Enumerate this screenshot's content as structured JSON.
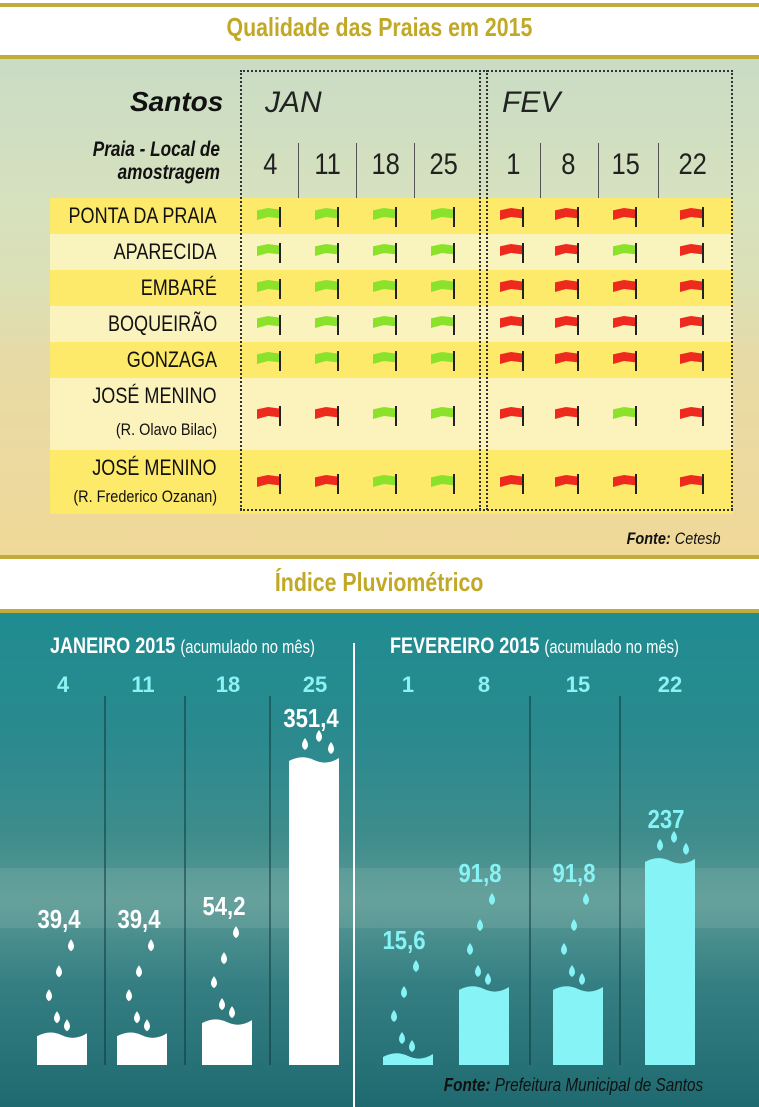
{
  "header": {
    "title": "Qualidade das Praias em  2015"
  },
  "table": {
    "city": "Santos",
    "column_header": "Praia - Local de amostragem",
    "months": [
      {
        "label": "JAN",
        "days": [
          "4",
          "11",
          "18",
          "25"
        ]
      },
      {
        "label": "FEV",
        "days": [
          "1",
          "8",
          "15",
          "22"
        ]
      }
    ],
    "rows": [
      {
        "name": "PONTA DA PRAIA",
        "sub": "",
        "flags": [
          "green",
          "green",
          "green",
          "green",
          "red",
          "red",
          "red",
          "red"
        ]
      },
      {
        "name": "APARECIDA",
        "sub": "",
        "flags": [
          "green",
          "green",
          "green",
          "green",
          "red",
          "red",
          "green",
          "red"
        ]
      },
      {
        "name": "EMBARÉ",
        "sub": "",
        "flags": [
          "green",
          "green",
          "green",
          "green",
          "red",
          "red",
          "red",
          "red"
        ]
      },
      {
        "name": "BOQUEIRÃO",
        "sub": "",
        "flags": [
          "green",
          "green",
          "green",
          "green",
          "red",
          "red",
          "red",
          "red"
        ]
      },
      {
        "name": "GONZAGA",
        "sub": "",
        "flags": [
          "green",
          "green",
          "green",
          "green",
          "red",
          "red",
          "red",
          "red"
        ]
      },
      {
        "name": "JOSÉ MENINO",
        "sub": "(R. Olavo Bilac)",
        "flags": [
          "red",
          "red",
          "green",
          "green",
          "red",
          "red",
          "green",
          "red"
        ]
      },
      {
        "name": "JOSÉ MENINO",
        "sub": "(R. Frederico Ozanan)",
        "flags": [
          "red",
          "red",
          "green",
          "green",
          "red",
          "red",
          "red",
          "red"
        ]
      }
    ],
    "flag_colors": {
      "green": "#8be22b",
      "red": "#ee2a1f"
    },
    "source_label": "Fonte:",
    "source_value": "Cetesb"
  },
  "section2": {
    "title": "Índice Pluviométrico"
  },
  "chart_data": {
    "type": "bar",
    "title": "Índice Pluviométrico",
    "groups": [
      {
        "label": "JANEIRO 2015",
        "note": "(acumulado no mês)",
        "color": "#ffffff",
        "categories": [
          "4",
          "11",
          "18",
          "25"
        ],
        "values": [
          39.4,
          39.4,
          54.2,
          351.4
        ],
        "labels": [
          "39,4",
          "39,4",
          "54,2",
          "351,4"
        ]
      },
      {
        "label": "FEVEREIRO 2015",
        "note": "(acumulado no mês)",
        "color": "#86f4f6",
        "categories": [
          "1",
          "8",
          "15",
          "22"
        ],
        "values": [
          15.6,
          91.8,
          91.8,
          237
        ],
        "labels": [
          "15,6",
          "91,8",
          "91,8",
          "237"
        ]
      }
    ],
    "source_label": "Fonte:",
    "source_value": "Prefeitura Municipal de Santos"
  }
}
